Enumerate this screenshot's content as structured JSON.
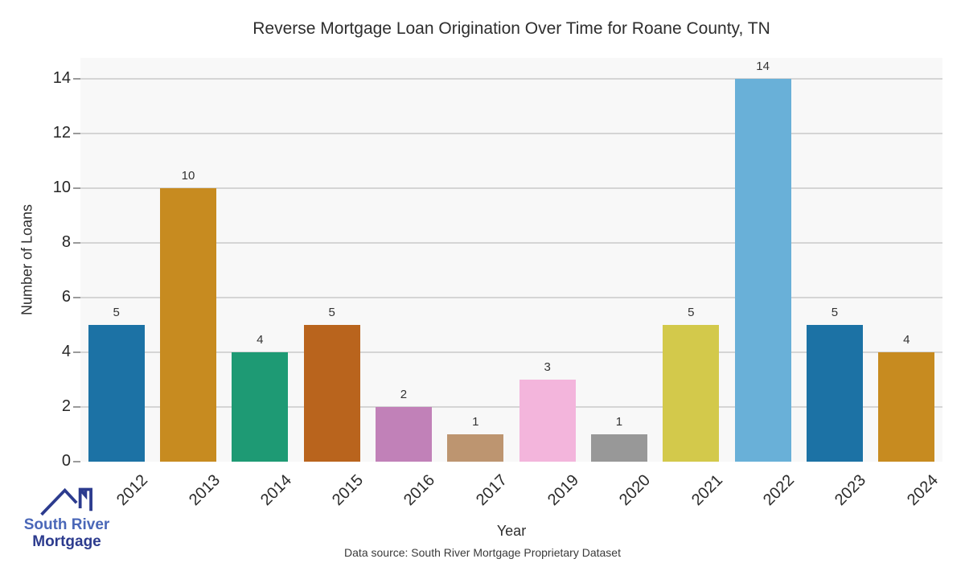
{
  "chart_data": {
    "type": "bar",
    "title": "Reverse Mortgage Loan Origination Over Time for Roane County, TN",
    "categories": [
      "2012",
      "2013",
      "2014",
      "2015",
      "2016",
      "2017",
      "2019",
      "2020",
      "2021",
      "2022",
      "2023",
      "2024"
    ],
    "values": [
      5,
      10,
      4,
      5,
      2,
      1,
      3,
      1,
      5,
      14,
      5,
      4
    ],
    "bar_colors": [
      "#1c72a5",
      "#c78b20",
      "#1e9a74",
      "#b9641d",
      "#c181b8",
      "#bd9570",
      "#f3b5dc",
      "#989898",
      "#d3c94b",
      "#69b0d8",
      "#1c72a5",
      "#c78b20"
    ],
    "xlabel": "Year",
    "ylabel": "Number of Loans",
    "yticks": [
      0,
      2,
      4,
      6,
      8,
      10,
      12,
      14
    ],
    "ylim": [
      0,
      14.75
    ],
    "grid": "horizontal",
    "legend": "none",
    "plot_bg": "#f8f8f8",
    "grid_color": "#d5d5d5"
  },
  "footer": {
    "text": "Data source: South River Mortgage Proprietary Dataset"
  },
  "logo": {
    "icon": "house-roof-icon",
    "line1": "South River",
    "line2": "Mortgage",
    "line1_color": "#4a67b8",
    "line2_color": "#2c3b8e"
  }
}
